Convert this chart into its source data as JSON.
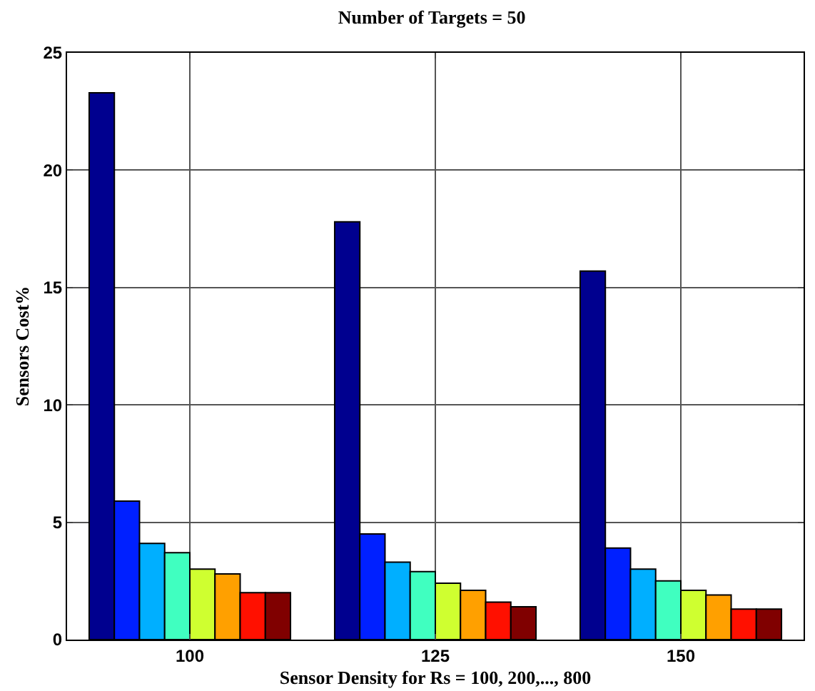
{
  "chart_data": {
    "type": "bar",
    "title": "Number of Targets = 50",
    "xlabel": "Sensor Density for Rs = 100, 200,..., 800",
    "ylabel": "Sensors Cost%",
    "categories": [
      "100",
      "125",
      "150"
    ],
    "series": [
      {
        "color": "#00008f",
        "values": [
          23.3,
          17.8,
          15.7
        ]
      },
      {
        "color": "#0020ff",
        "values": [
          5.9,
          4.5,
          3.9
        ]
      },
      {
        "color": "#00afff",
        "values": [
          4.1,
          3.3,
          3.0
        ]
      },
      {
        "color": "#40ffc0",
        "values": [
          3.7,
          2.9,
          2.5
        ]
      },
      {
        "color": "#cfff30",
        "values": [
          3.0,
          2.4,
          2.1
        ]
      },
      {
        "color": "#ffa000",
        "values": [
          2.8,
          2.1,
          1.9
        ]
      },
      {
        "color": "#ff1000",
        "values": [
          2.0,
          1.6,
          1.3
        ]
      },
      {
        "color": "#800000",
        "values": [
          2.0,
          1.4,
          1.3
        ]
      }
    ],
    "ylim": [
      0,
      25
    ],
    "yticks": [
      0,
      5,
      10,
      15,
      20,
      25
    ],
    "grid": true
  }
}
